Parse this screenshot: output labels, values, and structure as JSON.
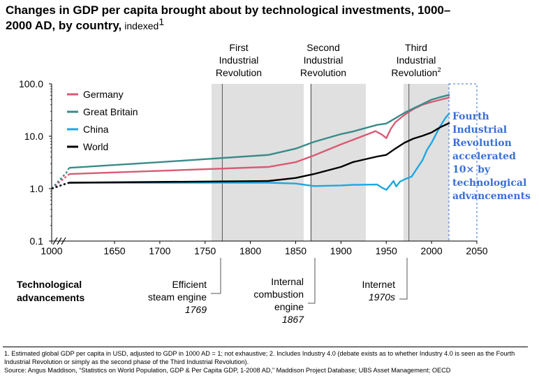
{
  "chart_data": {
    "type": "line",
    "title": "Changes in GDP per capita brought about by technological investments, 1000–2000 AD, by country,",
    "title_suffix": "indexed",
    "title_footnote_mark": "1",
    "yscale": "log",
    "ylim": [
      0.1,
      100
    ],
    "xlim": [
      1000,
      2050
    ],
    "x_ticks": [
      {
        "value": 1000,
        "label": "1000"
      },
      {
        "value": 1650,
        "label": "1650"
      },
      {
        "value": 1700,
        "label": "1700"
      },
      {
        "value": 1750,
        "label": "1750"
      },
      {
        "value": 1800,
        "label": "1800"
      },
      {
        "value": 1850,
        "label": "1850"
      },
      {
        "value": 1900,
        "label": "1900"
      },
      {
        "value": 1950,
        "label": "1950"
      },
      {
        "value": 2000,
        "label": "2000"
      },
      {
        "value": 2050,
        "label": "2050"
      }
    ],
    "y_ticks": [
      {
        "value": 0.1,
        "label": "0.1"
      },
      {
        "value": 1,
        "label": "1.0"
      },
      {
        "value": 10,
        "label": "10.0"
      },
      {
        "value": 100,
        "label": "100.0"
      }
    ],
    "axis_break": "1000–1600 compressed",
    "series": [
      {
        "name": "Germany",
        "color": "#d95a73",
        "points": [
          [
            1000,
            1.0
          ],
          [
            1500,
            1.7
          ],
          [
            1600,
            1.9
          ],
          [
            1820,
            2.6
          ],
          [
            1850,
            3.2
          ],
          [
            1870,
            4.3
          ],
          [
            1900,
            7.0
          ],
          [
            1913,
            8.5
          ],
          [
            1938,
            12.5
          ],
          [
            1945,
            10.8
          ],
          [
            1950,
            9.2
          ],
          [
            1955,
            13.8
          ],
          [
            1960,
            18.5
          ],
          [
            1970,
            25.5
          ],
          [
            1980,
            33.0
          ],
          [
            1990,
            40.0
          ],
          [
            2000,
            45.0
          ],
          [
            2010,
            50.0
          ],
          [
            2020,
            55.0
          ]
        ]
      },
      {
        "name": "Great Britain",
        "color": "#3b8a8a",
        "points": [
          [
            1000,
            1.0
          ],
          [
            1500,
            2.0
          ],
          [
            1600,
            2.5
          ],
          [
            1700,
            3.2
          ],
          [
            1820,
            4.4
          ],
          [
            1850,
            5.8
          ],
          [
            1870,
            7.8
          ],
          [
            1900,
            11.0
          ],
          [
            1913,
            12.3
          ],
          [
            1940,
            16.5
          ],
          [
            1950,
            17.5
          ],
          [
            1960,
            22.0
          ],
          [
            1970,
            28.0
          ],
          [
            1980,
            34.0
          ],
          [
            1990,
            41.0
          ],
          [
            2000,
            50.0
          ],
          [
            2010,
            56.0
          ],
          [
            2020,
            62.0
          ]
        ]
      },
      {
        "name": "China",
        "color": "#1ea7e1",
        "points": [
          [
            1000,
            1.0
          ],
          [
            1500,
            1.25
          ],
          [
            1600,
            1.3
          ],
          [
            1820,
            1.3
          ],
          [
            1850,
            1.25
          ],
          [
            1870,
            1.12
          ],
          [
            1900,
            1.15
          ],
          [
            1913,
            1.18
          ],
          [
            1940,
            1.2
          ],
          [
            1945,
            1.05
          ],
          [
            1950,
            0.95
          ],
          [
            1955,
            1.2
          ],
          [
            1958,
            1.4
          ],
          [
            1961,
            1.1
          ],
          [
            1965,
            1.35
          ],
          [
            1970,
            1.5
          ],
          [
            1978,
            1.7
          ],
          [
            1985,
            2.6
          ],
          [
            1990,
            3.5
          ],
          [
            1995,
            5.5
          ],
          [
            2000,
            7.5
          ],
          [
            2005,
            11.0
          ],
          [
            2010,
            16.0
          ],
          [
            2015,
            22.0
          ],
          [
            2020,
            28.0
          ]
        ]
      },
      {
        "name": "World",
        "color": "#000000",
        "points": [
          [
            1000,
            1.0
          ],
          [
            1500,
            1.25
          ],
          [
            1600,
            1.3
          ],
          [
            1820,
            1.4
          ],
          [
            1850,
            1.6
          ],
          [
            1870,
            1.9
          ],
          [
            1900,
            2.6
          ],
          [
            1913,
            3.2
          ],
          [
            1940,
            4.1
          ],
          [
            1950,
            4.4
          ],
          [
            1960,
            5.8
          ],
          [
            1970,
            7.5
          ],
          [
            1980,
            9.0
          ],
          [
            1990,
            10.2
          ],
          [
            2000,
            11.8
          ],
          [
            2010,
            15.0
          ],
          [
            2020,
            18.0
          ]
        ]
      }
    ],
    "shaded_eras": [
      {
        "label_lines": [
          "First",
          "Industrial",
          "Revolution"
        ],
        "start": 1760,
        "end": 1860,
        "marker": 1769
      },
      {
        "label_lines": [
          "Second",
          "Industrial",
          "Revolution"
        ],
        "start": 1865,
        "end": 1930,
        "marker": 1867
      },
      {
        "label_lines": [
          "Third",
          "Industrial",
          "Revolution"
        ],
        "label_footnote_mark": "2",
        "start": 1970,
        "end": 2020,
        "marker": 1975
      }
    ],
    "fourth_revolution": {
      "start": 2020,
      "end": 2050,
      "lines": [
        "Fourth",
        "Industrial",
        "Revolution",
        "accelerated",
        "10× by",
        "technological",
        "advancements"
      ]
    },
    "advancements": {
      "heading_lines": [
        "Technological",
        "advancements"
      ],
      "items": [
        {
          "lines": [
            "Efficient",
            "steam engine"
          ],
          "year": "1769"
        },
        {
          "lines": [
            "Internal",
            "combustion",
            "engine"
          ],
          "year": "1867"
        },
        {
          "lines": [
            "Internet"
          ],
          "year": "1970s"
        }
      ]
    }
  },
  "footnotes": {
    "note_1": "1. Estimated global GDP per capita in USD, adjusted to GDP in 1000 AD = 1; not exhaustive; 2. Includes Industry 4.0 (debate exists as to whether Industry 4.0 is seen as the Fourth Industrial Revolution or simply as the second phase of the Third Industrial Revolution).",
    "source": "Source: Angus Maddison, “Statistics on World Population, GDP & Per Capita GDP, 1-2008 AD,” Maddison Project Database; UBS Asset Management; OECD"
  }
}
